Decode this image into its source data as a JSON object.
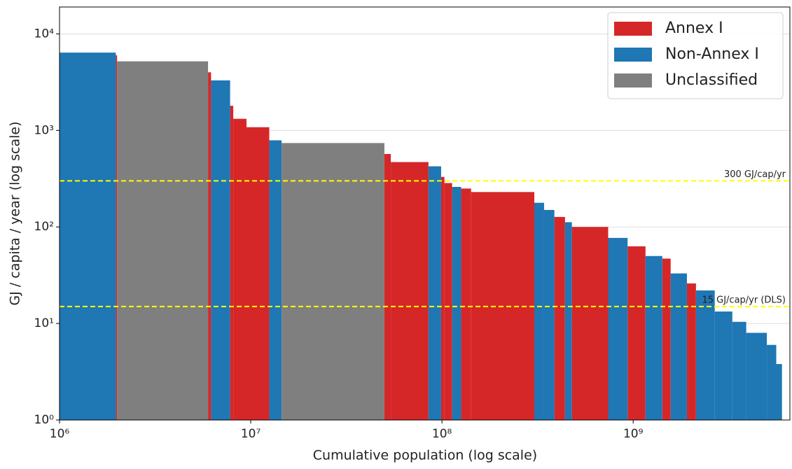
{
  "chart_data": {
    "type": "step-bar",
    "x_label": "Cumulative population (log scale)",
    "y_label": "GJ / capita / year (log scale)",
    "xscale": "log",
    "yscale": "log",
    "xlim": [
      1000000,
      6600000000
    ],
    "ylim": [
      1,
      19000
    ],
    "xticks": [
      {
        "value": 1000000,
        "label": "10⁶"
      },
      {
        "value": 10000000,
        "label": "10⁷"
      },
      {
        "value": 100000000,
        "label": "10⁸"
      },
      {
        "value": 1000000000,
        "label": "10⁹"
      }
    ],
    "yticks": [
      {
        "value": 1,
        "label": "10⁰"
      },
      {
        "value": 10,
        "label": "10¹"
      },
      {
        "value": 100,
        "label": "10²"
      },
      {
        "value": 1000,
        "label": "10³"
      },
      {
        "value": 10000,
        "label": "10⁴"
      }
    ],
    "grid": "y",
    "legend": "upper right",
    "series": [
      {
        "name": "Annex I",
        "color": "#d62728",
        "x0": [
          1970000,
          5980000,
          7800000,
          8100000,
          9500000,
          50000000,
          54000000,
          99000000,
          103000000,
          126000000,
          142000000,
          387000000,
          478000000,
          935000000,
          1420000000,
          1910000000
        ],
        "x1": [
          2000000,
          6200000,
          8100000,
          9500000,
          12500000,
          54000000,
          85000000,
          103000000,
          113000000,
          142000000,
          304000000,
          440000000,
          740000000,
          1160000000,
          1570000000,
          2130000000
        ],
        "values": [
          6000,
          4000,
          1800,
          1320,
          1080,
          570,
          470,
          330,
          285,
          250,
          230,
          127,
          100,
          63,
          47,
          26
        ]
      },
      {
        "name": "Non-Annex I",
        "color": "#1f77b4",
        "x0": [
          1000000,
          6200000,
          12500000,
          85000000,
          113000000,
          304000000,
          342000000,
          440000000,
          740000000,
          1160000000,
          1570000000,
          2130000000,
          2670000000,
          3300000000,
          3900000000,
          5000000000,
          5600000000
        ],
        "x1": [
          1970000,
          7800000,
          14500000,
          99000000,
          126000000,
          342000000,
          387000000,
          478000000,
          935000000,
          1420000000,
          1910000000,
          2670000000,
          3300000000,
          3900000000,
          5000000000,
          5600000000,
          6000000000
        ],
        "values": [
          6400,
          3300,
          790,
          425,
          260,
          178,
          150,
          112,
          77,
          50,
          33,
          22,
          13.3,
          10.4,
          8,
          6,
          3.8
        ]
      },
      {
        "name": "Unclassified",
        "color": "#7f7f7f",
        "x0": [
          2000000,
          14500000
        ],
        "x1": [
          5980000,
          50000000
        ],
        "values": [
          5200,
          740
        ]
      }
    ],
    "hlines": [
      {
        "y": 300,
        "label": "300 GJ/cap/yr",
        "color": "#ffff00"
      },
      {
        "y": 15,
        "label": "15 GJ/cap/yr (DLS)",
        "color": "#ffff00"
      }
    ]
  }
}
